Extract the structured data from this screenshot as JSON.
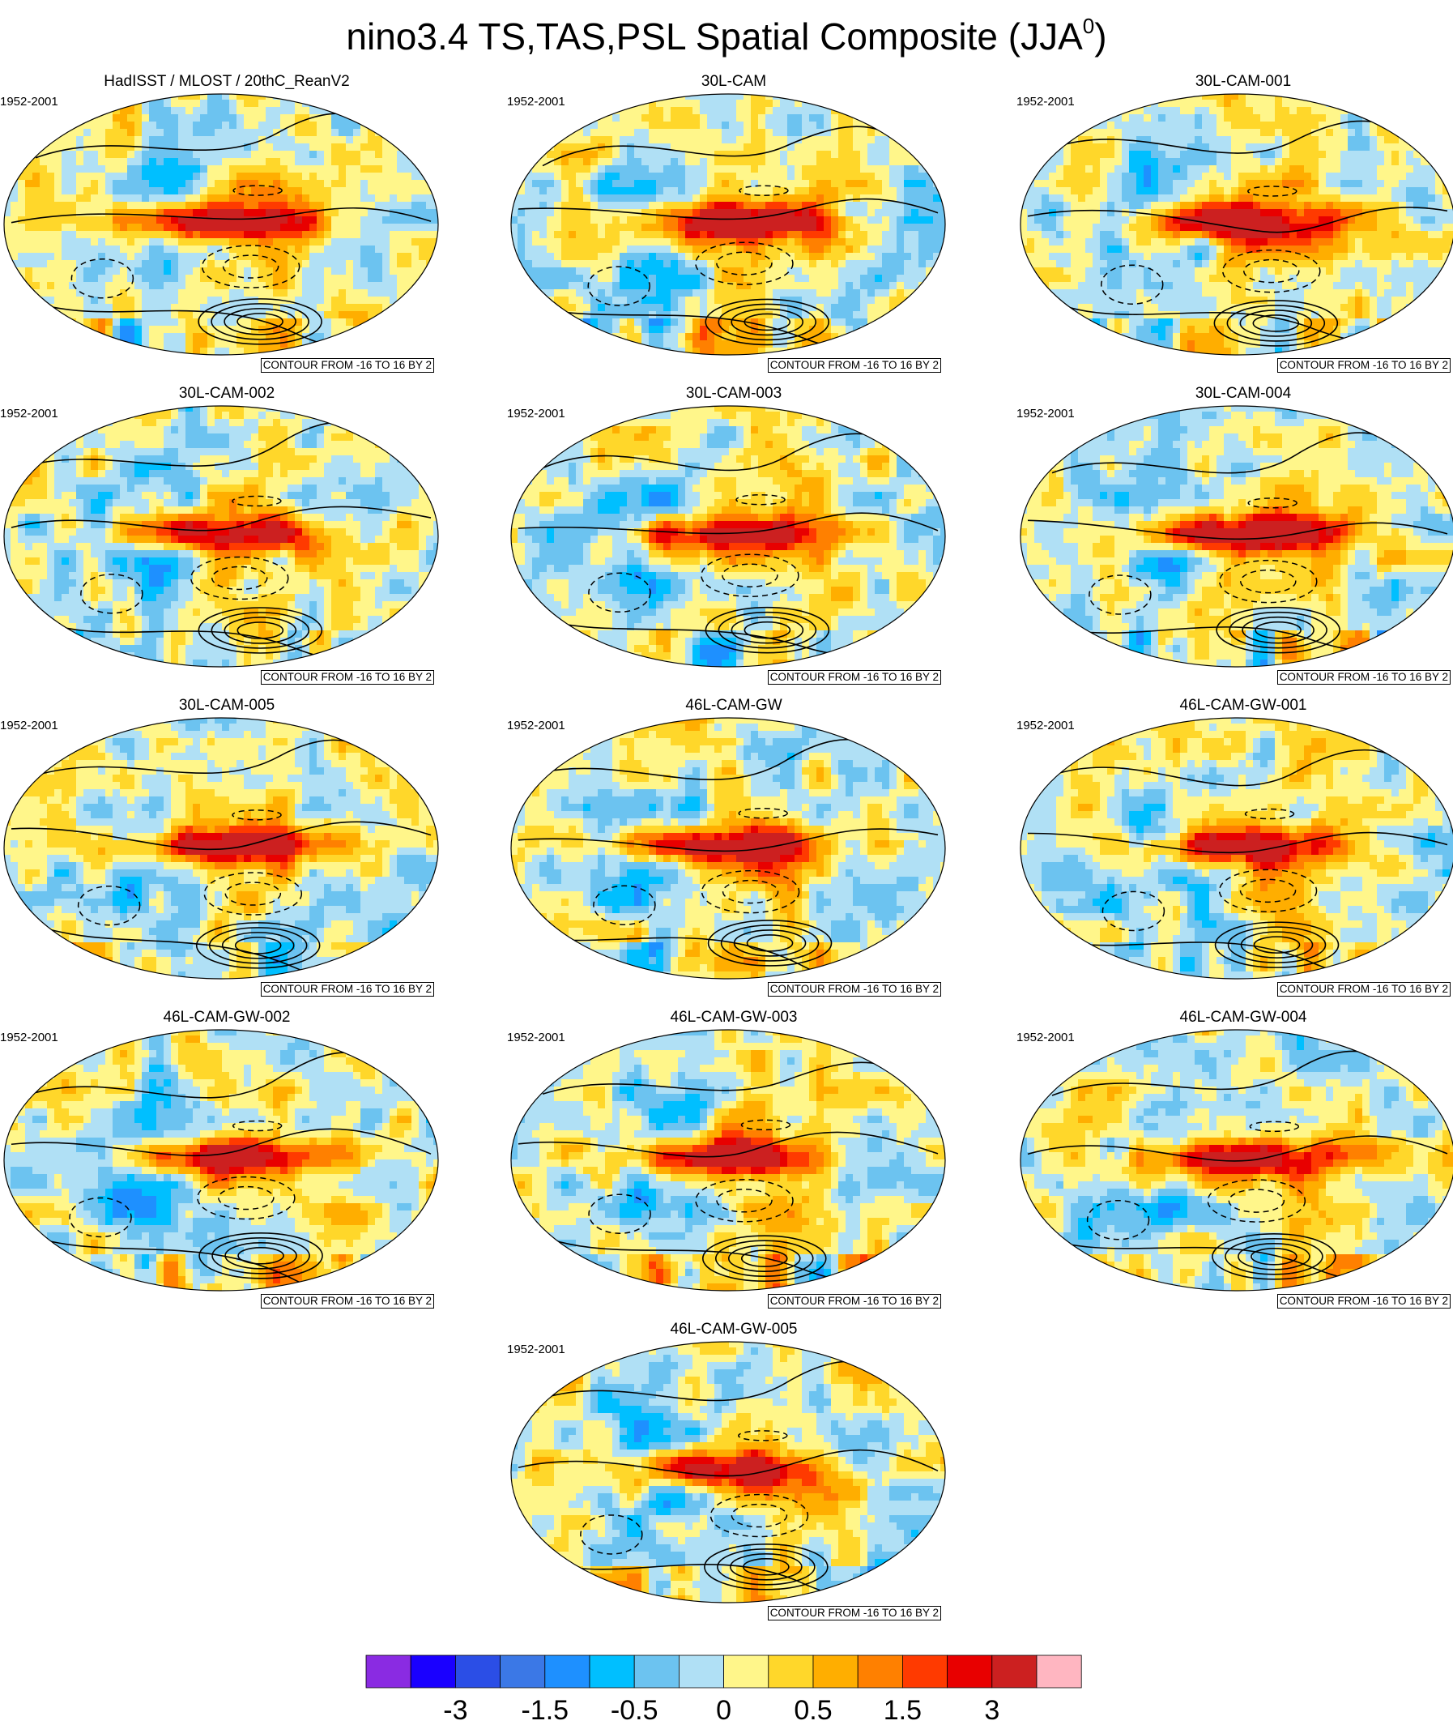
{
  "title": {
    "main": "nino3.4 TS,TAS,PSL Spatial Composite (JJA",
    "superscript": "0",
    "close": ")"
  },
  "panels": [
    {
      "name": "HadISST / MLOST / 20thC_ReanV2",
      "period": "1952-2001",
      "contour_label": "CONTOUR FROM -16 TO 16 BY 2"
    },
    {
      "name": "30L-CAM",
      "period": "1952-2001",
      "contour_label": "CONTOUR FROM -16 TO 16 BY 2"
    },
    {
      "name": "30L-CAM-001",
      "period": "1952-2001",
      "contour_label": "CONTOUR FROM -16 TO 16 BY 2"
    },
    {
      "name": "30L-CAM-002",
      "period": "1952-2001",
      "contour_label": "CONTOUR FROM -16 TO 16 BY 2"
    },
    {
      "name": "30L-CAM-003",
      "period": "1952-2001",
      "contour_label": "CONTOUR FROM -16 TO 16 BY 2"
    },
    {
      "name": "30L-CAM-004",
      "period": "1952-2001",
      "contour_label": "CONTOUR FROM -16 TO 16 BY 2"
    },
    {
      "name": "30L-CAM-005",
      "period": "1952-2001",
      "contour_label": "CONTOUR FROM -16 TO 16 BY 2"
    },
    {
      "name": "46L-CAM-GW",
      "period": "1952-2001",
      "contour_label": "CONTOUR FROM -16 TO 16 BY 2"
    },
    {
      "name": "46L-CAM-GW-001",
      "period": "1952-2001",
      "contour_label": "CONTOUR FROM -16 TO 16 BY 2"
    },
    {
      "name": "46L-CAM-GW-002",
      "period": "1952-2001",
      "contour_label": "CONTOUR FROM -16 TO 16 BY 2"
    },
    {
      "name": "46L-CAM-GW-003",
      "period": "1952-2001",
      "contour_label": "CONTOUR FROM -16 TO 16 BY 2"
    },
    {
      "name": "46L-CAM-GW-004",
      "period": "1952-2001",
      "contour_label": "CONTOUR FROM -16 TO 16 BY 2"
    },
    {
      "name": "46L-CAM-GW-005",
      "period": "1952-2001",
      "contour_label": "CONTOUR FROM -16 TO 16 BY 2"
    }
  ],
  "colorbar": {
    "colors": [
      "#8a2be2",
      "#1a00ff",
      "#2b4ee6",
      "#3b78e6",
      "#1e90ff",
      "#00bfff",
      "#6cc3f0",
      "#b0e0f5",
      "#fff68a",
      "#ffd72a",
      "#ffae00",
      "#ff8000",
      "#ff3a00",
      "#e80000",
      "#cc2020",
      "#ffb6c1"
    ],
    "labels": [
      "-3",
      "-1.5",
      "-0.5",
      "0",
      "0.5",
      "1.5",
      "3"
    ]
  }
}
